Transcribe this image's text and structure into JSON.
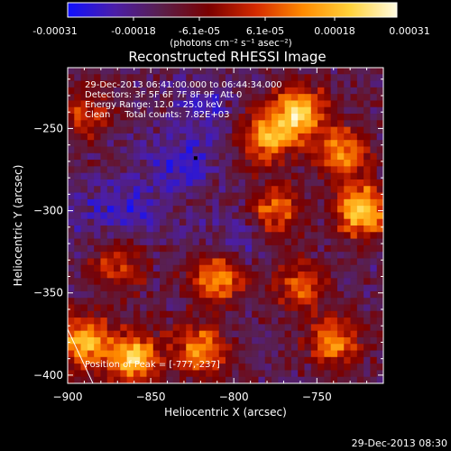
{
  "colorbar": {
    "tick_labels": [
      "-0.00031",
      "-0.00018",
      "-6.1e-05",
      "6.1e-05",
      "0.00018",
      "0.00031"
    ],
    "units": "(photons cm⁻² s⁻¹ asec⁻²)",
    "range": [
      -0.00031,
      0.00031
    ],
    "gradient_stops": [
      "#1010ff",
      "#4b1ea8",
      "#5a1f4a",
      "#7a0000",
      "#d42a00",
      "#ff8a00",
      "#ffd23a",
      "#fffbe0"
    ]
  },
  "title": "Reconstructed RHESSI Image",
  "info": {
    "line1": "29-Dec-2013 06:41:00.000 to 06:44:34.000",
    "line2": "Detectors: 3F 5F 6F 7F 8F 9F, Att 0",
    "line3": "Energy Range: 12.0 - 25.0 keV",
    "line4": "Clean     Total counts: 7.82E+03"
  },
  "peak_label": "Position of Peak = [-777,-237]",
  "timestamp": "29-Dec-2013 08:30",
  "chart_data": {
    "type": "heatmap",
    "title": "Reconstructed RHESSI Image",
    "xlabel": "Heliocentric X (arcsec)",
    "ylabel": "Heliocentric Y (arcsec)",
    "xlim": [
      -900,
      -710
    ],
    "ylim": [
      -405,
      -213
    ],
    "x_ticks": [
      -900,
      -850,
      -800,
      -750
    ],
    "x_tick_labels": [
      "−900",
      "−850",
      "−800",
      "−750"
    ],
    "y_ticks": [
      -250,
      -300,
      -350,
      -400
    ],
    "y_tick_labels": [
      "−250",
      "−300",
      "−350",
      "−400"
    ],
    "peak_position": [
      -777,
      -237
    ],
    "bright_regions": [
      {
        "x": -760,
        "y": -240,
        "level": 0.9
      },
      {
        "x": -780,
        "y": -255,
        "level": 0.75
      },
      {
        "x": -722,
        "y": -300,
        "level": 0.95
      },
      {
        "x": -775,
        "y": -300,
        "level": 0.6
      },
      {
        "x": -810,
        "y": -340,
        "level": 0.8
      },
      {
        "x": -760,
        "y": -345,
        "level": 0.55
      },
      {
        "x": -890,
        "y": -380,
        "level": 0.85
      },
      {
        "x": -860,
        "y": -390,
        "level": 0.9
      },
      {
        "x": -820,
        "y": -385,
        "level": 0.7
      },
      {
        "x": -870,
        "y": -335,
        "level": 0.5
      },
      {
        "x": -890,
        "y": -240,
        "level": 0.45
      },
      {
        "x": -740,
        "y": -380,
        "level": 0.7
      },
      {
        "x": -735,
        "y": -265,
        "level": 0.65
      }
    ],
    "dark_regions": [
      {
        "x": -830,
        "y": -270,
        "level": 0.8
      },
      {
        "x": -860,
        "y": -300,
        "level": 0.5
      },
      {
        "x": -800,
        "y": -320,
        "level": 0.6
      },
      {
        "x": -880,
        "y": -300,
        "level": 0.4
      },
      {
        "x": -820,
        "y": -235,
        "level": 0.5
      }
    ],
    "grid": false
  }
}
